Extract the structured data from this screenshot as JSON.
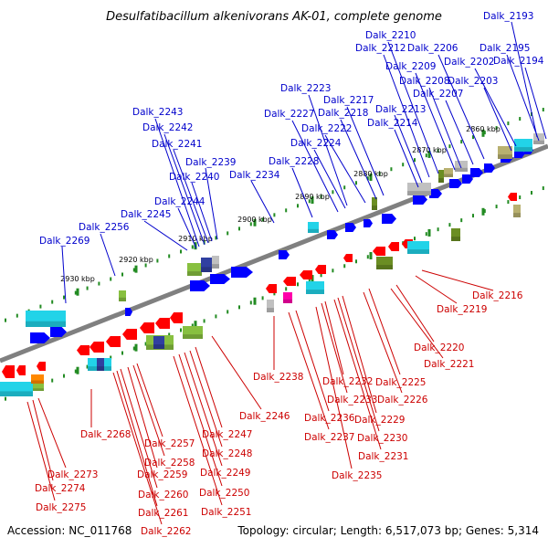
{
  "title": "Desulfatibacillum alkenivorans AK-01, complete genome",
  "footer": {
    "accession": "Accession: NC_011768",
    "topology": "Topology: circular; Length: 6,517,073 bp; Genes: 5,314"
  },
  "colors": {
    "backbone": "#808080",
    "forward_label": "#0000cc",
    "reverse_label": "#cc0000",
    "forward_gene": "#0000ff",
    "reverse_gene": "#ff0000",
    "ticks": "#228b22",
    "cog_cyan": "#22d3e8",
    "cog_green": "#88c040",
    "cog_olive": "#6b8e23",
    "cog_gray": "#c0c0c0",
    "cog_khaki": "#b8b070",
    "cog_magenta": "#ff00aa",
    "cog_navy": "#3040a0",
    "cog_orange": "#ff8800"
  },
  "kbp_markers": [
    "2860 kbp",
    "2870 kbp",
    "2880 kbp",
    "2890 kbp",
    "2900 kbp",
    "2910 kbp",
    "2920 kbp",
    "2930 kbp"
  ],
  "forward_genes": [
    "Dalk_2193",
    "Dalk_2194",
    "Dalk_2195",
    "Dalk_2202",
    "Dalk_2203",
    "Dalk_2206",
    "Dalk_2207",
    "Dalk_2208",
    "Dalk_2209",
    "Dalk_2210",
    "Dalk_2212",
    "Dalk_2213",
    "Dalk_2214",
    "Dalk_2217",
    "Dalk_2218",
    "Dalk_2222",
    "Dalk_2223",
    "Dalk_2224",
    "Dalk_2227",
    "Dalk_2228",
    "Dalk_2234",
    "Dalk_2239",
    "Dalk_2240",
    "Dalk_2241",
    "Dalk_2242",
    "Dalk_2243",
    "Dalk_2244",
    "Dalk_2245",
    "Dalk_2256",
    "Dalk_2269"
  ],
  "reverse_genes": [
    "Dalk_2216",
    "Dalk_2219",
    "Dalk_2220",
    "Dalk_2221",
    "Dalk_2225",
    "Dalk_2226",
    "Dalk_2229",
    "Dalk_2230",
    "Dalk_2231",
    "Dalk_2232",
    "Dalk_2233",
    "Dalk_2235",
    "Dalk_2236",
    "Dalk_2237",
    "Dalk_2238",
    "Dalk_2246",
    "Dalk_2247",
    "Dalk_2248",
    "Dalk_2249",
    "Dalk_2250",
    "Dalk_2251",
    "Dalk_2257",
    "Dalk_2258",
    "Dalk_2259",
    "Dalk_2260",
    "Dalk_2261",
    "Dalk_2262",
    "Dalk_2268",
    "Dalk_2273",
    "Dalk_2274",
    "Dalk_2275"
  ]
}
